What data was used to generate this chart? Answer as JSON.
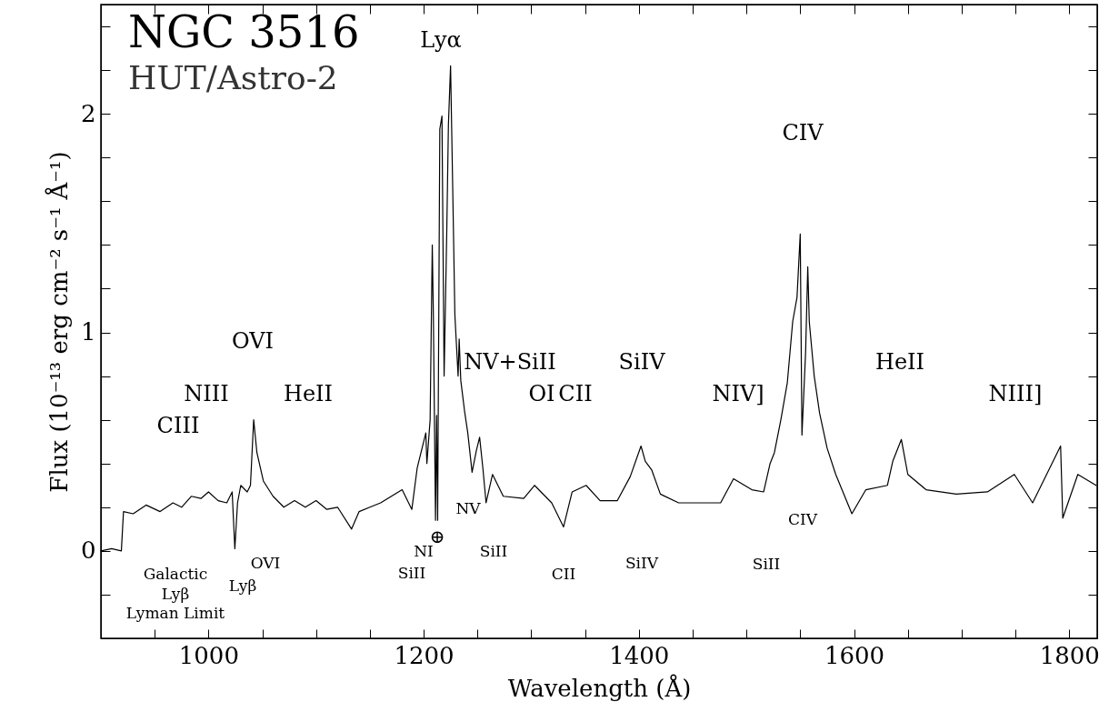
{
  "chart_data": {
    "type": "line",
    "title": "NGC 3516",
    "subtitle": "HUT/Astro-2",
    "xlabel": "Wavelength (Å)",
    "ylabel": "Flux (10⁻¹³ erg cm⁻² s⁻¹ Å⁻¹)",
    "xlim": [
      900,
      1826
    ],
    "ylim": [
      -0.4,
      2.5
    ],
    "xticks": [
      {
        "value": 950,
        "label": null
      },
      1000,
      {
        "value": 1050,
        "label": null
      },
      {
        "value": 1100,
        "label": null
      },
      {
        "value": 1150,
        "label": null
      },
      1200,
      {
        "value": 1250,
        "label": null
      },
      {
        "value": 1300,
        "label": null
      },
      {
        "value": 1350,
        "label": null
      },
      1400,
      {
        "value": 1450,
        "label": null
      },
      {
        "value": 1500,
        "label": null
      },
      {
        "value": 1550,
        "label": null
      },
      1600,
      {
        "value": 1650,
        "label": null
      },
      {
        "value": 1700,
        "label": null
      },
      {
        "value": 1750,
        "label": null
      },
      1800
    ],
    "yticks": [
      {
        "value": -0.2,
        "label": null
      },
      0,
      {
        "value": 0.2,
        "label": null
      },
      {
        "value": 0.4,
        "label": null
      },
      {
        "value": 0.6,
        "label": null
      },
      {
        "value": 0.8,
        "label": null
      },
      1,
      {
        "value": 1.2,
        "label": null
      },
      {
        "value": 1.4,
        "label": null
      },
      {
        "value": 1.6,
        "label": null
      },
      {
        "value": 1.8,
        "label": null
      },
      2,
      {
        "value": 2.2,
        "label": null
      },
      {
        "value": 2.4,
        "label": null
      }
    ],
    "grid": false,
    "x": [
      900,
      910,
      919,
      921,
      930,
      942,
      955,
      967,
      975,
      984,
      993,
      1000,
      1009,
      1017,
      1022,
      1024.5,
      1027,
      1030,
      1036,
      1039,
      1042,
      1045,
      1051,
      1060,
      1070,
      1080,
      1090,
      1100,
      1110,
      1120,
      1133,
      1140,
      1150,
      1160,
      1170,
      1180,
      1189,
      1194,
      1202,
      1203,
      1206,
      1208,
      1209,
      1211,
      1212,
      1213,
      1215,
      1217,
      1219,
      1221.5,
      1223,
      1225,
      1227,
      1229,
      1232,
      1233,
      1234.5,
      1238,
      1241,
      1245,
      1249,
      1252,
      1255,
      1258,
      1264,
      1274,
      1293,
      1303,
      1319,
      1330,
      1338,
      1351,
      1364,
      1380,
      1392,
      1402,
      1406,
      1412,
      1420,
      1437,
      1454,
      1476,
      1488,
      1505,
      1516,
      1522,
      1526,
      1532,
      1538,
      1543,
      1547,
      1550,
      1551.6,
      1555,
      1557,
      1558.4,
      1563,
      1568,
      1575,
      1583,
      1598,
      1611,
      1631,
      1636,
      1644,
      1650,
      1667,
      1695,
      1724,
      1749,
      1766,
      1792,
      1794,
      1808,
      1825
    ],
    "series": [
      {
        "color": "#000000",
        "values": [
          0.0,
          0.01,
          0.0,
          0.18,
          0.17,
          0.21,
          0.18,
          0.22,
          0.2,
          0.25,
          0.24,
          0.27,
          0.23,
          0.22,
          0.27,
          0.01,
          0.22,
          0.3,
          0.27,
          0.3,
          0.6,
          0.45,
          0.32,
          0.25,
          0.2,
          0.23,
          0.2,
          0.23,
          0.19,
          0.2,
          0.1,
          0.18,
          0.2,
          0.22,
          0.25,
          0.28,
          0.19,
          0.38,
          0.54,
          0.4,
          0.6,
          1.4,
          1.08,
          0.14,
          0.62,
          0.14,
          1.93,
          1.99,
          0.8,
          1.47,
          1.95,
          2.22,
          1.66,
          1.08,
          0.8,
          0.97,
          0.78,
          0.64,
          0.54,
          0.36,
          0.46,
          0.52,
          0.38,
          0.22,
          0.35,
          0.25,
          0.24,
          0.3,
          0.22,
          0.11,
          0.27,
          0.3,
          0.23,
          0.23,
          0.34,
          0.48,
          0.41,
          0.37,
          0.26,
          0.22,
          0.22,
          0.22,
          0.33,
          0.28,
          0.27,
          0.4,
          0.45,
          0.6,
          0.77,
          1.05,
          1.16,
          1.45,
          0.53,
          0.91,
          1.3,
          1.05,
          0.8,
          0.63,
          0.47,
          0.35,
          0.17,
          0.28,
          0.3,
          0.41,
          0.51,
          0.35,
          0.28,
          0.26,
          0.27,
          0.35,
          0.22,
          0.48,
          0.15,
          0.35,
          0.3
        ]
      }
    ],
    "annotations": [
      "Lyα",
      "CIV",
      "OVI",
      "NIII",
      "CIII",
      "HeII",
      "NV+SiII",
      "OI",
      "CII",
      "SiIV",
      "NIV]",
      "HeII",
      "NIII]",
      "Galactic",
      "Lyβ",
      "Lyman Limit",
      "Lyβ",
      "OVI",
      "SiII",
      "NI",
      "⊕",
      "NV",
      "SiII",
      "CII",
      "SiIV",
      "SiII",
      "CIV"
    ]
  }
}
